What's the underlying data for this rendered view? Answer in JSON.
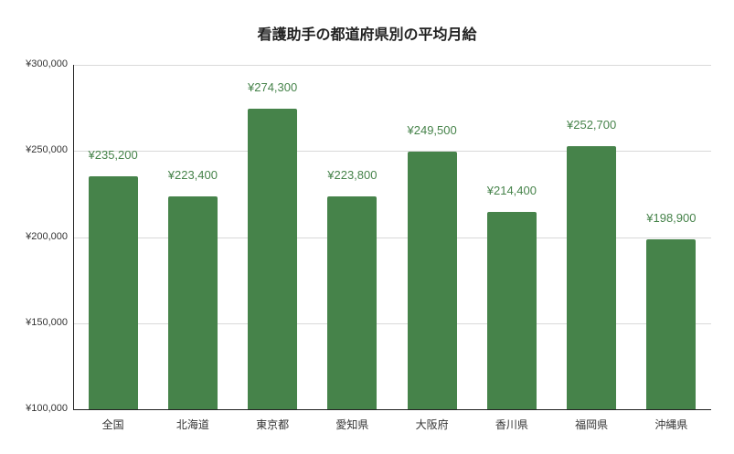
{
  "chart_data": {
    "type": "bar",
    "title": "看護助手の都道府県別の平均月給",
    "xlabel": "",
    "ylabel": "",
    "categories": [
      "全国",
      "北海道",
      "東京都",
      "愛知県",
      "大阪府",
      "香川県",
      "福岡県",
      "沖縄県"
    ],
    "values": [
      235200,
      223400,
      274300,
      223800,
      249500,
      214400,
      252700,
      198900
    ],
    "value_labels": [
      "¥235,200",
      "¥223,400",
      "¥274,300",
      "¥223,800",
      "¥249,500",
      "¥214,400",
      "¥252,700",
      "¥198,900"
    ],
    "ylim": [
      100000,
      300000
    ],
    "yticks": [
      300000,
      250000,
      200000,
      150000,
      100000
    ],
    "ytick_labels": [
      "¥300,000",
      "¥250,000",
      "¥200,000",
      "¥150,000",
      "¥100,000"
    ],
    "grid": true,
    "legend": null,
    "colors": {
      "bar": "#46834a",
      "label": "#46834a",
      "grid": "#d9d9d9",
      "axis": "#222222"
    }
  }
}
